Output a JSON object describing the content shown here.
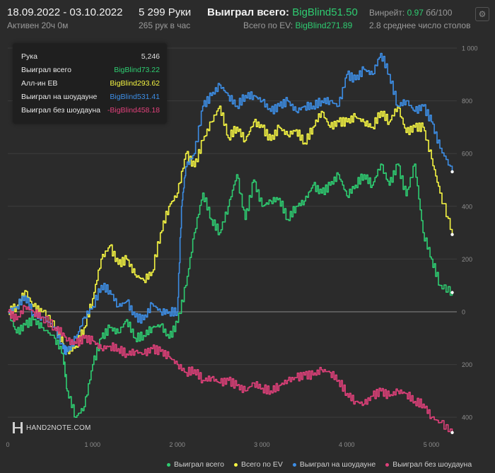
{
  "header": {
    "date_range": "18.09.2022 - 03.10.2022",
    "active": "Активен 20ч 0м",
    "hands": "5 299 Руки",
    "hands_per_hour": "265 рук в час",
    "won_total_label": "Выиграл всего:",
    "won_total_value": "BigBlind51.50",
    "ev_total_label": "Всего по EV:",
    "ev_total_value": "BigBlind271.89",
    "winrate_label": "Винрейт:",
    "winrate_value": "0.97",
    "winrate_unit": "бб/100",
    "tables": "2.8 среднее число столов",
    "settings_icon": "gear-icon"
  },
  "tooltip": {
    "rows": [
      {
        "label": "Рука",
        "value": "5,246",
        "color": "#e0e0e0"
      },
      {
        "label": "Выиграл всего",
        "value": "BigBlind73.22",
        "color": "#2ecc71"
      },
      {
        "label": "Алл-ин EB",
        "value": "BigBlind293.62",
        "color": "#f5f542"
      },
      {
        "label": "Выиграл на шоудауне",
        "value": "BigBlind531.41",
        "color": "#3d8ee6"
      },
      {
        "label": "Выиграл без шоудауна",
        "value": "-BigBlind458.18",
        "color": "#e0407a"
      }
    ]
  },
  "logo": {
    "text": "HAND2NOTE.COM"
  },
  "chart_data": {
    "type": "line",
    "xlim": [
      0,
      5300
    ],
    "ylim": [
      -480,
      1000
    ],
    "x_ticks": [
      0,
      1000,
      2000,
      3000,
      4000,
      5000
    ],
    "x_tick_labels": [
      "0",
      "1 000",
      "2 000",
      "3 000",
      "4 000",
      "5 000"
    ],
    "y_ticks": [
      1000,
      800,
      600,
      400,
      200,
      0,
      -200,
      -400
    ],
    "y_tick_labels": [
      "1 000",
      "800",
      "600",
      "400",
      "200",
      "0",
      "200",
      "400"
    ],
    "grid": true,
    "legend_position": "bottom",
    "series": [
      {
        "name": "Выиграл всего",
        "color": "#2ecc71",
        "x": [
          0,
          100,
          200,
          300,
          400,
          550,
          650,
          700,
          800,
          900,
          1000,
          1100,
          1200,
          1300,
          1400,
          1500,
          1600,
          1700,
          1800,
          1900,
          2000,
          2100,
          2200,
          2300,
          2400,
          2500,
          2600,
          2700,
          2800,
          2900,
          3000,
          3100,
          3200,
          3300,
          3400,
          3500,
          3600,
          3700,
          3800,
          3900,
          4000,
          4100,
          4200,
          4300,
          4400,
          4500,
          4600,
          4700,
          4800,
          4900,
          5000,
          5100,
          5246
        ],
        "y": [
          0,
          -80,
          -50,
          -30,
          -60,
          -100,
          -160,
          -300,
          -400,
          -360,
          -200,
          -100,
          -60,
          -80,
          -30,
          -100,
          -90,
          -60,
          -50,
          -100,
          -40,
          100,
          300,
          450,
          350,
          300,
          400,
          520,
          350,
          500,
          400,
          420,
          430,
          350,
          400,
          420,
          480,
          450,
          480,
          520,
          440,
          480,
          520,
          480,
          560,
          480,
          560,
          440,
          560,
          300,
          200,
          100,
          73
        ]
      },
      {
        "name": "Всего по EV",
        "color": "#f5f542",
        "x": [
          0,
          100,
          200,
          300,
          400,
          550,
          650,
          700,
          800,
          900,
          1000,
          1100,
          1200,
          1300,
          1400,
          1500,
          1600,
          1700,
          1800,
          1900,
          2000,
          2100,
          2200,
          2300,
          2400,
          2500,
          2600,
          2700,
          2800,
          2900,
          3000,
          3100,
          3200,
          3300,
          3400,
          3500,
          3600,
          3700,
          3800,
          3900,
          4000,
          4100,
          4200,
          4300,
          4400,
          4500,
          4600,
          4700,
          4800,
          4900,
          5000,
          5100,
          5246
        ],
        "y": [
          0,
          20,
          80,
          20,
          0,
          -60,
          -120,
          -150,
          -130,
          -60,
          50,
          200,
          250,
          180,
          200,
          140,
          120,
          150,
          300,
          400,
          450,
          600,
          550,
          650,
          720,
          780,
          660,
          700,
          650,
          720,
          700,
          650,
          700,
          670,
          690,
          640,
          700,
          760,
          700,
          720,
          720,
          740,
          720,
          700,
          760,
          720,
          780,
          680,
          700,
          700,
          580,
          450,
          293
        ]
      },
      {
        "name": "Выиграл на шоудауне",
        "color": "#3d8ee6",
        "x": [
          0,
          100,
          200,
          300,
          400,
          550,
          650,
          700,
          800,
          900,
          1000,
          1100,
          1200,
          1300,
          1400,
          1500,
          1600,
          1700,
          1800,
          1900,
          2000,
          2050,
          2100,
          2200,
          2300,
          2400,
          2500,
          2600,
          2700,
          2800,
          2900,
          3000,
          3100,
          3200,
          3300,
          3400,
          3500,
          3600,
          3700,
          3800,
          3900,
          4000,
          4100,
          4200,
          4300,
          4400,
          4500,
          4600,
          4700,
          4800,
          4900,
          5000,
          5100,
          5246
        ],
        "y": [
          0,
          20,
          60,
          -10,
          -20,
          -60,
          -140,
          -150,
          -100,
          -20,
          20,
          100,
          80,
          20,
          40,
          -20,
          -30,
          30,
          0,
          0,
          0,
          400,
          550,
          600,
          780,
          820,
          860,
          820,
          780,
          820,
          820,
          800,
          760,
          780,
          800,
          760,
          780,
          780,
          800,
          800,
          780,
          900,
          880,
          920,
          900,
          980,
          900,
          780,
          800,
          760,
          780,
          720,
          620,
          531
        ]
      },
      {
        "name": "Выиграл без шоудауна",
        "color": "#e0407a",
        "x": [
          0,
          100,
          200,
          300,
          400,
          550,
          650,
          700,
          800,
          900,
          1000,
          1100,
          1200,
          1300,
          1400,
          1500,
          1600,
          1700,
          1800,
          1900,
          2000,
          2100,
          2200,
          2300,
          2400,
          2500,
          2600,
          2700,
          2800,
          2900,
          3000,
          3100,
          3200,
          3300,
          3400,
          3500,
          3600,
          3700,
          3800,
          3900,
          4000,
          4100,
          4200,
          4300,
          4400,
          4500,
          4600,
          4700,
          4800,
          4900,
          5000,
          5100,
          5246
        ],
        "y": [
          0,
          -30,
          20,
          0,
          -20,
          -60,
          -80,
          -110,
          -120,
          -100,
          -110,
          -140,
          -130,
          -140,
          -160,
          -150,
          -160,
          -140,
          -150,
          -170,
          -200,
          -230,
          -220,
          -260,
          -250,
          -270,
          -260,
          -280,
          -300,
          -270,
          -290,
          -300,
          -280,
          -260,
          -250,
          -240,
          -240,
          -220,
          -230,
          -260,
          -310,
          -340,
          -350,
          -320,
          -300,
          -320,
          -300,
          -310,
          -340,
          -350,
          -400,
          -420,
          -458
        ]
      }
    ]
  }
}
